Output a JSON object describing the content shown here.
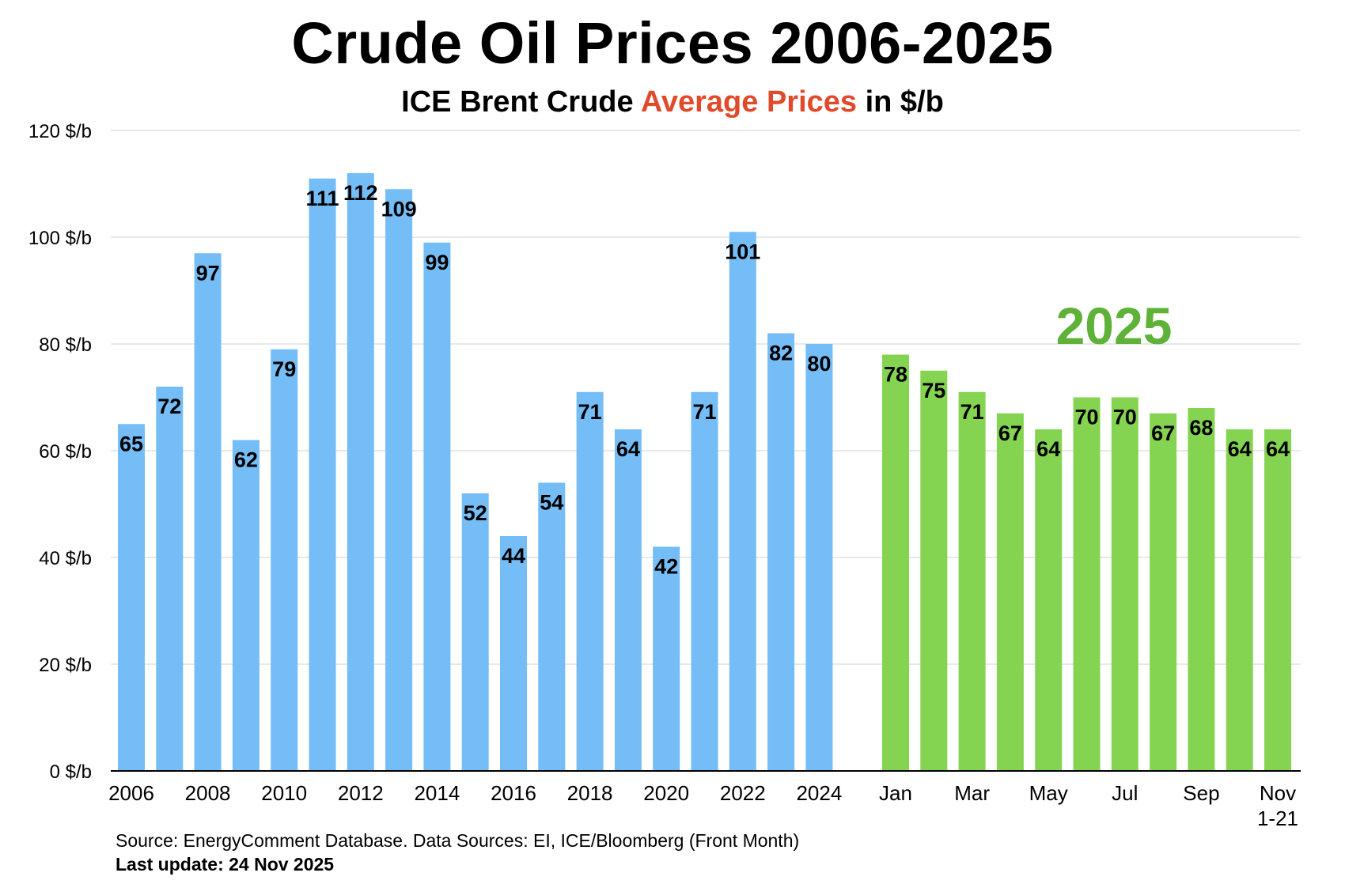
{
  "chart_data": {
    "type": "bar",
    "title": "Crude Oil Prices 2006-2025",
    "subtitle_parts": [
      "ICE Brent Crude ",
      "Average Prices",
      " in $/b"
    ],
    "ylim": [
      0,
      120
    ],
    "yticks": [
      "0 $/b",
      "20 $/b",
      "40 $/b",
      "60 $/b",
      "80 $/b",
      "100 $/b",
      "120 $/b"
    ],
    "grid": true,
    "group_annotation": "2025",
    "colors": {
      "annual": "#74bdf7",
      "monthly": "#85d451",
      "annotation": "#5fb238",
      "subtitle_highlight": "#e04a2a",
      "grid": "#d0d0d0"
    },
    "annual": {
      "categories": [
        "2006",
        "2007",
        "2008",
        "2009",
        "2010",
        "2011",
        "2012",
        "2013",
        "2014",
        "2015",
        "2016",
        "2017",
        "2018",
        "2019",
        "2020",
        "2021",
        "2022",
        "2023",
        "2024"
      ],
      "tick_labels": [
        "2006",
        "",
        "2008",
        "",
        "2010",
        "",
        "2012",
        "",
        "2014",
        "",
        "2016",
        "",
        "2018",
        "",
        "2020",
        "",
        "2022",
        "",
        "2024"
      ],
      "values": [
        65,
        72,
        97,
        62,
        79,
        111,
        112,
        109,
        99,
        52,
        44,
        54,
        71,
        64,
        42,
        71,
        101,
        82,
        80
      ]
    },
    "monthly_2025": {
      "categories": [
        "Jan",
        "Feb",
        "Mar",
        "Apr",
        "May",
        "Jun",
        "Jul",
        "Aug",
        "Sep",
        "Oct",
        "Nov 1-21"
      ],
      "tick_labels": [
        "Jan",
        "",
        "Mar",
        "",
        "May",
        "",
        "Jul",
        "",
        "Sep",
        "",
        "Nov\n1-21"
      ],
      "values": [
        78,
        75,
        71,
        67,
        64,
        70,
        70,
        67,
        68,
        64,
        64
      ]
    }
  },
  "footer": {
    "source": "Source: EnergyComment Database. Data Sources: EI, ICE/Bloomberg (Front Month)",
    "last_update": "Last update: 24 Nov 2025"
  }
}
